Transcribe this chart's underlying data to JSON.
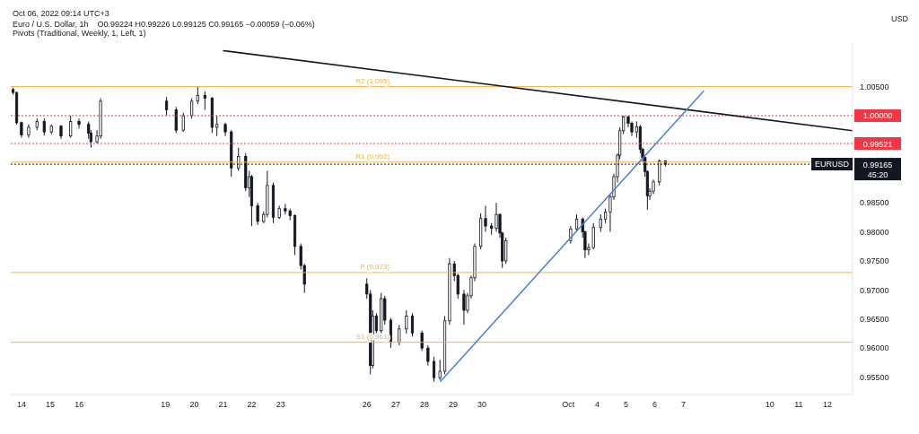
{
  "chart_data": {
    "type": "candlestick",
    "title": "Euro / U.S. Dollar, 1h",
    "subtitle": "O0.99224 H0.99226 L0.99125 C0.99165 −0.00059 (−0.06%)",
    "ylabel": "USD",
    "annotations": [
      "Oct 06, 2022 09:14 UTC+3",
      "Pivots (Traditional, Weekly, 1, Left, 1)",
      {
        "text": "EURUSD",
        "y": 0.99165
      }
    ],
    "x": [
      "2022-09-13T17:00",
      "2022-09-13T20:00",
      "2022-09-14T00:00",
      "2022-09-14T06:00",
      "2022-09-14T13:00",
      "2022-09-14T19:00",
      "2022-09-15T01:00",
      "2022-09-15T09:00",
      "2022-09-15T17:00",
      "2022-09-16T00:00",
      "2022-09-16T08:00",
      "2022-09-16T10:00",
      "2022-09-16T15:00",
      "2022-09-16T18:00",
      "2022-09-19T01:00",
      "2022-09-19T09:00",
      "2022-09-19T15:00",
      "2022-09-19T22:00",
      "2022-09-20T03:00",
      "2022-09-20T09:00",
      "2022-09-20T15:00",
      "2022-09-20T19:00",
      "2022-09-21T02:00",
      "2022-09-21T07:00",
      "2022-09-21T13:00",
      "2022-09-21T19:00",
      "2022-09-21T22:00",
      "2022-09-22T00:00",
      "2022-09-22T05:00",
      "2022-09-22T10:00",
      "2022-09-22T13:00",
      "2022-09-22T18:00",
      "2022-09-22T23:00",
      "2022-09-23T04:00",
      "2022-09-23T08:00",
      "2022-09-23T12:00",
      "2022-09-23T17:00",
      "2022-09-23T20:00",
      "2022-09-26T00:00",
      "2022-09-26T03:00",
      "2022-09-26T05:00",
      "2022-09-26T08:00",
      "2022-09-26T12:00",
      "2022-09-26T15:00",
      "2022-09-26T20:00",
      "2022-09-27T03:00",
      "2022-09-27T09:00",
      "2022-09-27T14:00",
      "2022-09-27T22:00",
      "2022-09-28T03:00",
      "2022-09-28T08:00",
      "2022-09-28T13:00",
      "2022-09-28T17:00",
      "2022-09-28T21:00",
      "2022-09-29T01:00",
      "2022-09-29T04:00",
      "2022-09-29T09:00",
      "2022-09-29T12:00",
      "2022-09-29T15:00",
      "2022-09-29T18:00",
      "2022-09-29T23:00",
      "2022-09-30T03:00",
      "2022-09-30T08:00",
      "2022-09-30T12:00",
      "2022-09-30T15:00",
      "2022-09-30T17:00",
      "2022-09-30T20:00",
      "2022-10-03T02:00",
      "2022-10-03T07:00",
      "2022-10-03T12:00",
      "2022-10-03T14:00",
      "2022-10-03T17:00",
      "2022-10-03T21:00",
      "2022-10-04T03:00",
      "2022-10-04T07:00",
      "2022-10-04T11:00",
      "2022-10-04T14:00",
      "2022-10-04T17:00",
      "2022-10-04T19:00",
      "2022-10-04T22:00",
      "2022-10-05T02:00",
      "2022-10-05T05:00",
      "2022-10-05T09:00",
      "2022-10-05T12:00",
      "2022-10-05T14:00",
      "2022-10-05T16:00",
      "2022-10-05T18:00",
      "2022-10-05T20:00",
      "2022-10-05T23:00",
      "2022-10-06T04:00",
      "2022-10-06T09:00"
    ],
    "ohlc": [
      [
        1.0045,
        1.0048,
        1.0036,
        1.004
      ],
      [
        1.004,
        1.0041,
        0.9985,
        0.9988
      ],
      [
        0.9988,
        0.999,
        0.9962,
        0.9967
      ],
      [
        0.9967,
        0.9985,
        0.9962,
        0.998
      ],
      [
        0.998,
        0.9995,
        0.9975,
        0.999
      ],
      [
        0.999,
        0.9995,
        0.9966,
        0.9972
      ],
      [
        0.9972,
        0.9985,
        0.9968,
        0.9982
      ],
      [
        0.9982,
        0.9984,
        0.996,
        0.9965
      ],
      [
        0.9965,
        1.0,
        0.9962,
        0.999
      ],
      [
        0.999,
        0.9995,
        0.9978,
        0.9985
      ],
      [
        0.9985,
        0.999,
        0.996,
        0.997
      ],
      [
        0.997,
        0.9975,
        0.9945,
        0.9955
      ],
      [
        0.9955,
        0.9975,
        0.9952,
        0.9965
      ],
      [
        0.9965,
        1.003,
        0.996,
        1.0025
      ],
      [
        1.0025,
        1.0032,
        1.0,
        1.001
      ],
      [
        1.001,
        1.0015,
        0.997,
        0.9975
      ],
      [
        0.9975,
        1.0005,
        0.9972,
        1.0
      ],
      [
        1.0,
        1.003,
        0.9995,
        1.0025
      ],
      [
        1.0025,
        1.005,
        1.002,
        1.0035
      ],
      [
        1.0035,
        1.0042,
        1.001,
        1.003
      ],
      [
        1.003,
        1.0032,
        0.997,
        0.998
      ],
      [
        0.998,
        1.0,
        0.9965,
        0.9985
      ],
      [
        0.9985,
        0.9988,
        0.9965,
        0.9972
      ],
      [
        0.9972,
        0.9975,
        0.9895,
        0.991
      ],
      [
        0.991,
        0.9945,
        0.9905,
        0.993
      ],
      [
        0.993,
        0.9935,
        0.987,
        0.9876
      ],
      [
        0.9876,
        0.9905,
        0.986,
        0.9895
      ],
      [
        0.9895,
        0.9898,
        0.981,
        0.9845
      ],
      [
        0.9845,
        0.985,
        0.9812,
        0.9818
      ],
      [
        0.9818,
        0.9835,
        0.9815,
        0.983
      ],
      [
        0.983,
        0.9905,
        0.9825,
        0.988
      ],
      [
        0.988,
        0.9885,
        0.9815,
        0.9825
      ],
      [
        0.9825,
        0.9845,
        0.9822,
        0.984
      ],
      [
        0.984,
        0.9848,
        0.983,
        0.9836
      ],
      [
        0.9836,
        0.984,
        0.982,
        0.9828
      ],
      [
        0.9828,
        0.983,
        0.976,
        0.9775
      ],
      [
        0.9775,
        0.978,
        0.9735,
        0.9742
      ],
      [
        0.9742,
        0.9745,
        0.9695,
        0.971
      ],
      [
        0.971,
        0.972,
        0.9685,
        0.9693
      ],
      [
        0.9693,
        0.97,
        0.9555,
        0.957
      ],
      [
        0.957,
        0.9665,
        0.9565,
        0.9655
      ],
      [
        0.9655,
        0.966,
        0.962,
        0.963
      ],
      [
        0.963,
        0.9695,
        0.9625,
        0.9685
      ],
      [
        0.9685,
        0.969,
        0.964,
        0.9648
      ],
      [
        0.9648,
        0.9652,
        0.96,
        0.961
      ],
      [
        0.961,
        0.964,
        0.9605,
        0.9633
      ],
      [
        0.9633,
        0.9665,
        0.9625,
        0.9655
      ],
      [
        0.9655,
        0.966,
        0.962,
        0.9626
      ],
      [
        0.9626,
        0.963,
        0.9595,
        0.96
      ],
      [
        0.96,
        0.9605,
        0.957,
        0.9577
      ],
      [
        0.9577,
        0.9585,
        0.9542,
        0.9549
      ],
      [
        0.9549,
        0.958,
        0.9545,
        0.956
      ],
      [
        0.956,
        0.9655,
        0.9555,
        0.9647
      ],
      [
        0.9647,
        0.9755,
        0.964,
        0.9745
      ],
      [
        0.9745,
        0.975,
        0.9715,
        0.9725
      ],
      [
        0.9725,
        0.9728,
        0.9685,
        0.9693
      ],
      [
        0.9693,
        0.97,
        0.964,
        0.9665
      ],
      [
        0.9665,
        0.9695,
        0.966,
        0.969
      ],
      [
        0.969,
        0.9725,
        0.9685,
        0.9721
      ],
      [
        0.9721,
        0.978,
        0.9715,
        0.9775
      ],
      [
        0.9775,
        0.9832,
        0.977,
        0.9823
      ],
      [
        0.9823,
        0.9845,
        0.98,
        0.981
      ],
      [
        0.981,
        0.9815,
        0.9795,
        0.9806
      ],
      [
        0.9806,
        0.985,
        0.98,
        0.983
      ],
      [
        0.983,
        0.9832,
        0.979,
        0.9798
      ],
      [
        0.9798,
        0.98,
        0.9738,
        0.975
      ],
      [
        0.975,
        0.979,
        0.9745,
        0.9785
      ],
      [
        0.9785,
        0.981,
        0.978,
        0.9805
      ],
      [
        0.9805,
        0.983,
        0.98,
        0.9822
      ],
      [
        0.9822,
        0.9825,
        0.979,
        0.98
      ],
      [
        0.98,
        0.9802,
        0.9755,
        0.9769
      ],
      [
        0.9769,
        0.978,
        0.976,
        0.9773
      ],
      [
        0.9773,
        0.9815,
        0.977,
        0.9808
      ],
      [
        0.9808,
        0.983,
        0.98,
        0.9822
      ],
      [
        0.9822,
        0.984,
        0.9815,
        0.9834
      ],
      [
        0.9834,
        0.9865,
        0.98,
        0.986
      ],
      [
        0.986,
        0.99,
        0.9855,
        0.9895
      ],
      [
        0.9895,
        0.9935,
        0.9885,
        0.9932
      ],
      [
        0.9932,
        0.998,
        0.9925,
        0.9974
      ],
      [
        0.9974,
        1.0,
        0.9968,
        0.9998
      ],
      [
        0.9998,
        1.0,
        0.998,
        0.9987
      ],
      [
        0.9987,
        0.999,
        0.9965,
        0.9972
      ],
      [
        0.9972,
        0.999,
        0.9962,
        0.9981
      ],
      [
        0.9981,
        0.9984,
        0.9935,
        0.9942
      ],
      [
        0.9942,
        0.9945,
        0.992,
        0.9928
      ],
      [
        0.9928,
        0.993,
        0.9895,
        0.9904
      ],
      [
        0.9904,
        0.9906,
        0.9838,
        0.9862
      ],
      [
        0.9862,
        0.9875,
        0.9855,
        0.987
      ],
      [
        0.987,
        0.989,
        0.9865,
        0.9886
      ],
      [
        0.9886,
        0.9925,
        0.988,
        0.9922
      ],
      [
        0.99224,
        0.99226,
        0.99125,
        0.99165
      ]
    ],
    "series": [
      {
        "type": "line",
        "color": "#131722",
        "x": [
          "2022-09-21T00:00",
          "2022-10-12T21:00"
        ],
        "values": [
          1.0112,
          0.9974
        ]
      },
      {
        "type": "line",
        "color": "#4a7fd4",
        "x": [
          "2022-09-28T13:00",
          "2022-10-07T17:00"
        ],
        "values": [
          0.9542,
          1.0043
        ]
      }
    ],
    "xlim": [
      "2022-09-13T15:00",
      "2022-10-12T21:00"
    ],
    "xticks": [
      {
        "value": "2022-09-14",
        "label": "14"
      },
      {
        "value": "2022-09-15",
        "label": "15"
      },
      {
        "value": "2022-09-16",
        "label": "16"
      },
      {
        "value": "2022-09-19",
        "label": "19"
      },
      {
        "value": "2022-09-20",
        "label": "20"
      },
      {
        "value": "2022-09-21",
        "label": "21"
      },
      {
        "value": "2022-09-22",
        "label": "22"
      },
      {
        "value": "2022-09-23",
        "label": "23"
      },
      {
        "value": "2022-09-26",
        "label": "26"
      },
      {
        "value": "2022-09-27",
        "label": "27"
      },
      {
        "value": "2022-09-28",
        "label": "28"
      },
      {
        "value": "2022-09-29",
        "label": "29"
      },
      {
        "value": "2022-09-30",
        "label": "30"
      },
      {
        "value": "2022-10-03",
        "label": "Oct"
      },
      {
        "value": "2022-10-04",
        "label": "4"
      },
      {
        "value": "2022-10-05",
        "label": "5"
      },
      {
        "value": "2022-10-06",
        "label": "6"
      },
      {
        "value": "2022-10-07",
        "label": "7"
      },
      {
        "value": "2022-10-10",
        "label": "10"
      },
      {
        "value": "2022-10-11",
        "label": "11"
      },
      {
        "value": "2022-10-12",
        "label": "12"
      }
    ],
    "ylim": [
      0.952,
      1.0125
    ],
    "yticks": [
      {
        "value": 0.955,
        "label": "0.95500"
      },
      {
        "value": 0.96,
        "label": "0.96000"
      },
      {
        "value": 0.965,
        "label": "0.96500"
      },
      {
        "value": 0.97,
        "label": "0.97000"
      },
      {
        "value": 0.975,
        "label": "0.97500"
      },
      {
        "value": 0.98,
        "label": "0.98000"
      },
      {
        "value": 0.985,
        "label": "0.98500"
      },
      {
        "value": 1.005,
        "label": "1.00500"
      }
    ],
    "ref_lines": [
      {
        "axis": "y",
        "value": 1.0,
        "label": "1.00000",
        "color": "#f23645",
        "line_style": "dotted"
      },
      {
        "axis": "y",
        "value": 0.99521,
        "label": "0.99521",
        "color": "#f23645",
        "line_style": "dotted"
      },
      {
        "axis": "y",
        "value": 0.99165,
        "label": "0.99165\n45:20",
        "color": "#131722",
        "line_style": "dotted"
      },
      {
        "axis": "y",
        "value": 1.005,
        "label": "R2 (1.005)",
        "color": "#f5b041",
        "line_style": "solid"
      },
      {
        "axis": "y",
        "value": 0.992,
        "label": "R1 (0.992)",
        "color": "#f5b041",
        "line_style": "solid"
      },
      {
        "axis": "y",
        "value": 0.973,
        "label": "P (0.973)",
        "color": "#f5b041",
        "line_style": "solid"
      },
      {
        "axis": "y",
        "value": 0.961,
        "label": "S1 (0.961)",
        "color": "#f5b041",
        "line_style": "solid"
      }
    ]
  }
}
